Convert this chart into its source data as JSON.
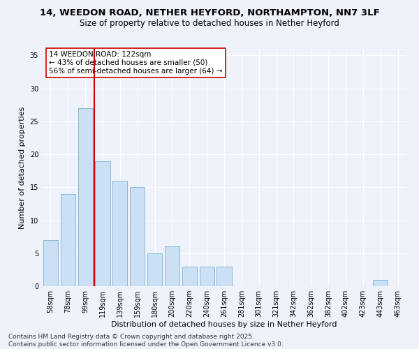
{
  "title1": "14, WEEDON ROAD, NETHER HEYFORD, NORTHAMPTON, NN7 3LF",
  "title2": "Size of property relative to detached houses in Nether Heyford",
  "xlabel": "Distribution of detached houses by size in Nether Heyford",
  "ylabel": "Number of detached properties",
  "categories": [
    "58sqm",
    "78sqm",
    "99sqm",
    "119sqm",
    "139sqm",
    "159sqm",
    "180sqm",
    "200sqm",
    "220sqm",
    "240sqm",
    "261sqm",
    "281sqm",
    "301sqm",
    "321sqm",
    "342sqm",
    "362sqm",
    "382sqm",
    "402sqm",
    "423sqm",
    "443sqm",
    "463sqm"
  ],
  "values": [
    7,
    14,
    27,
    19,
    16,
    15,
    5,
    6,
    3,
    3,
    3,
    0,
    0,
    0,
    0,
    0,
    0,
    0,
    0,
    1,
    0
  ],
  "bar_color": "#cce0f5",
  "bar_edge_color": "#8ab8d8",
  "vline_x_index": 3,
  "vline_color": "#cc0000",
  "annotation_text": "14 WEEDON ROAD: 122sqm\n← 43% of detached houses are smaller (50)\n56% of semi-detached houses are larger (64) →",
  "annotation_box_color": "#ffffff",
  "annotation_box_edge": "#cc0000",
  "ylim": [
    0,
    36
  ],
  "yticks": [
    0,
    5,
    10,
    15,
    20,
    25,
    30,
    35
  ],
  "footer": "Contains HM Land Registry data © Crown copyright and database right 2025.\nContains public sector information licensed under the Open Government Licence v3.0.",
  "bg_color": "#eef2fb",
  "grid_color": "#ffffff",
  "title1_fontsize": 9.5,
  "title2_fontsize": 8.5,
  "xlabel_fontsize": 8,
  "ylabel_fontsize": 8,
  "tick_fontsize": 7,
  "annot_fontsize": 7.5,
  "footer_fontsize": 6.5
}
